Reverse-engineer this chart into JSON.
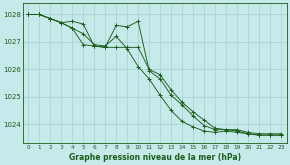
{
  "background_color": "#c6e9e9",
  "grid_color": "#aad4d4",
  "line_color": "#1a5c1a",
  "text_color": "#1a5c1a",
  "xlabel": "Graphe pression niveau de la mer (hPa)",
  "ylim": [
    1023.3,
    1028.4
  ],
  "xlim": [
    -0.5,
    23.5
  ],
  "yticks": [
    1024,
    1025,
    1026,
    1027,
    1028
  ],
  "xticks": [
    0,
    1,
    2,
    3,
    4,
    5,
    6,
    7,
    8,
    9,
    10,
    11,
    12,
    13,
    14,
    15,
    16,
    17,
    18,
    19,
    20,
    21,
    22,
    23
  ],
  "series": [
    [
      1028.0,
      1028.0,
      1027.85,
      1027.7,
      1027.75,
      1027.65,
      1026.85,
      1026.8,
      1027.6,
      1027.55,
      1027.75,
      1025.95,
      1025.65,
      1025.05,
      1024.7,
      1024.3,
      1023.95,
      1023.8,
      1023.8,
      1023.75,
      1023.65,
      1023.6,
      1023.6,
      1023.6
    ],
    [
      1028.0,
      1028.0,
      1027.85,
      1027.7,
      1027.5,
      1027.3,
      1026.9,
      1026.85,
      1027.2,
      1026.75,
      1026.1,
      1025.65,
      1025.05,
      1024.5,
      1024.1,
      1023.9,
      1023.75,
      1023.7,
      1023.75,
      1023.7,
      1023.65,
      1023.6,
      1023.6,
      1023.6
    ],
    [
      1028.0,
      1028.0,
      1027.85,
      1027.7,
      1027.5,
      1026.9,
      1026.85,
      1026.8,
      1026.8,
      1026.8,
      1026.8,
      1026.0,
      1025.8,
      1025.25,
      1024.8,
      1024.45,
      1024.15,
      1023.85,
      1023.8,
      1023.8,
      1023.7,
      1023.65,
      1023.65,
      1023.65
    ]
  ]
}
